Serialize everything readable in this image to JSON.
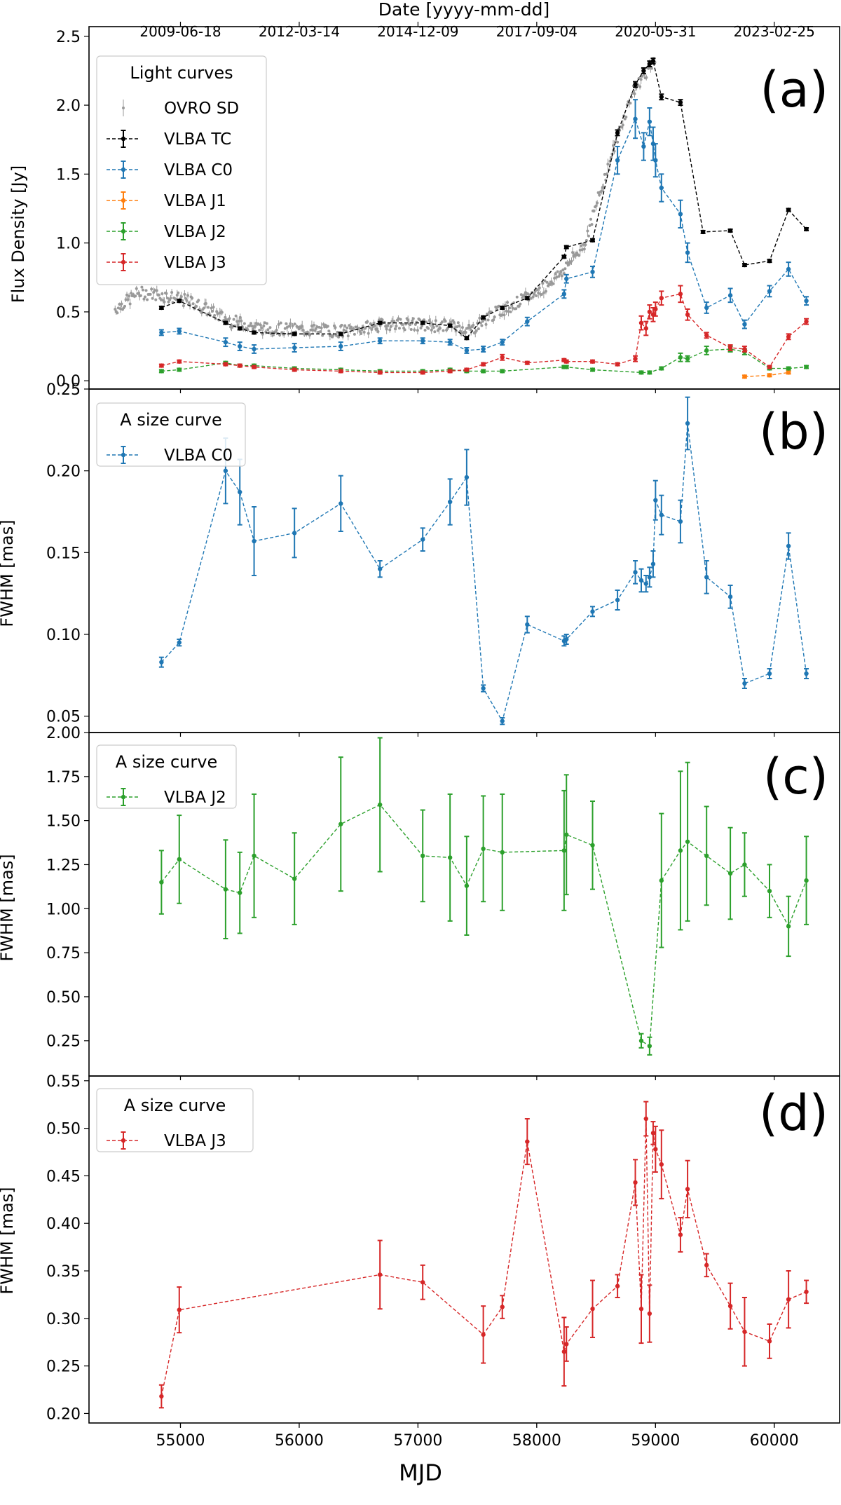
{
  "figure": {
    "top_axis_label": "Date [yyyy-mm-dd]",
    "top_ticks": [
      "2009-06-18",
      "2012-03-14",
      "2014-12-09",
      "2017-09-04",
      "2020-05-31",
      "2023-02-25"
    ],
    "top_tick_mjd": [
      55000,
      56000,
      57000,
      58000,
      59000,
      60000
    ],
    "x_axis_label": "MJD",
    "x_ticks": [
      "55000",
      "56000",
      "57000",
      "58000",
      "59000",
      "60000"
    ],
    "xlim": [
      54230,
      60550
    ]
  },
  "colors": {
    "ovro": "#999999",
    "tc": "#000000",
    "c0": "#1f77b4",
    "j1": "#ff7f0e",
    "j2": "#2ca02c",
    "j3": "#d62728"
  },
  "chart_data": [
    {
      "type": "line",
      "panel_label": "(a)",
      "ylabel": "Flux Density [Jy]",
      "ylim": [
        -0.06,
        2.57
      ],
      "yticks": [
        "0.0",
        "0.5",
        "1.0",
        "1.5",
        "2.0",
        "2.5"
      ],
      "legend_title": "Light curves",
      "series": [
        {
          "name": "VLBA TC",
          "color_key": "tc",
          "x": [
            54840,
            54990,
            55380,
            55500,
            55620,
            55960,
            56350,
            56680,
            57040,
            57270,
            57410,
            57550,
            57710,
            57920,
            58230,
            58250,
            58470,
            58680,
            58830,
            58900,
            58950,
            58980,
            59050,
            59210,
            59400,
            59630,
            59750,
            59960,
            60120,
            60270
          ],
          "y": [
            0.53,
            0.58,
            0.42,
            0.38,
            0.35,
            0.34,
            0.34,
            0.42,
            0.42,
            0.4,
            0.31,
            0.46,
            0.53,
            0.6,
            0.9,
            0.97,
            1.02,
            1.8,
            2.15,
            2.25,
            2.3,
            2.32,
            2.06,
            2.02,
            1.08,
            1.09,
            0.84,
            0.87,
            1.24,
            1.1
          ],
          "err": [
            0.01,
            0.01,
            0.01,
            0.01,
            0.01,
            0.01,
            0.01,
            0.01,
            0.01,
            0.01,
            0.01,
            0.01,
            0.01,
            0.01,
            0.01,
            0.01,
            0.01,
            0.02,
            0.02,
            0.02,
            0.02,
            0.02,
            0.02,
            0.02,
            0.01,
            0.01,
            0.01,
            0.01,
            0.01,
            0.01
          ]
        },
        {
          "name": "VLBA C0",
          "color_key": "c0",
          "x": [
            54840,
            54990,
            55380,
            55500,
            55620,
            55960,
            56350,
            56680,
            57040,
            57270,
            57410,
            57550,
            57710,
            57920,
            58230,
            58250,
            58470,
            58680,
            58830,
            58900,
            58950,
            58980,
            59000,
            59050,
            59210,
            59270,
            59430,
            59630,
            59750,
            59960,
            60120,
            60270
          ],
          "y": [
            0.35,
            0.36,
            0.28,
            0.25,
            0.23,
            0.24,
            0.25,
            0.29,
            0.29,
            0.28,
            0.22,
            0.23,
            0.28,
            0.43,
            0.63,
            0.74,
            0.79,
            1.6,
            1.9,
            1.7,
            1.88,
            1.72,
            1.6,
            1.4,
            1.21,
            0.93,
            0.53,
            0.62,
            0.41,
            0.65,
            0.81,
            0.58
          ],
          "err": [
            0.02,
            0.02,
            0.03,
            0.03,
            0.03,
            0.03,
            0.03,
            0.02,
            0.02,
            0.02,
            0.02,
            0.02,
            0.02,
            0.03,
            0.03,
            0.03,
            0.04,
            0.1,
            0.14,
            0.1,
            0.1,
            0.12,
            0.12,
            0.1,
            0.1,
            0.07,
            0.04,
            0.05,
            0.03,
            0.04,
            0.05,
            0.03
          ]
        },
        {
          "name": "VLBA J1",
          "color_key": "j1",
          "x": [
            59750,
            59960,
            60120
          ],
          "y": [
            0.03,
            0.04,
            0.06
          ],
          "err": [
            0.01,
            0.01,
            0.01
          ]
        },
        {
          "name": "VLBA J2",
          "color_key": "j2",
          "x": [
            54840,
            54990,
            55380,
            55500,
            55620,
            55960,
            56350,
            56680,
            57040,
            57270,
            57410,
            57550,
            57710,
            58230,
            58250,
            58470,
            58880,
            58950,
            59050,
            59210,
            59270,
            59430,
            59630,
            59750,
            59960,
            60120,
            60270
          ],
          "y": [
            0.07,
            0.08,
            0.13,
            0.11,
            0.11,
            0.09,
            0.08,
            0.07,
            0.07,
            0.08,
            0.07,
            0.07,
            0.07,
            0.1,
            0.1,
            0.08,
            0.06,
            0.06,
            0.09,
            0.17,
            0.16,
            0.22,
            0.23,
            0.21,
            0.09,
            0.09,
            0.1
          ],
          "err": [
            0.01,
            0.01,
            0.01,
            0.01,
            0.01,
            0.01,
            0.01,
            0.01,
            0.01,
            0.01,
            0.01,
            0.01,
            0.01,
            0.01,
            0.01,
            0.01,
            0.01,
            0.01,
            0.01,
            0.03,
            0.02,
            0.03,
            0.02,
            0.02,
            0.01,
            0.01,
            0.01
          ]
        },
        {
          "name": "VLBA J3",
          "color_key": "j3",
          "x": [
            54840,
            54990,
            55380,
            55500,
            55620,
            55960,
            56350,
            56680,
            57040,
            57270,
            57410,
            57550,
            57710,
            57920,
            58230,
            58250,
            58470,
            58680,
            58830,
            58880,
            58920,
            58950,
            58980,
            59000,
            59050,
            59210,
            59270,
            59430,
            59630,
            59750,
            59960,
            60120,
            60270
          ],
          "y": [
            0.11,
            0.14,
            0.12,
            0.11,
            0.1,
            0.08,
            0.07,
            0.06,
            0.06,
            0.07,
            0.08,
            0.12,
            0.17,
            0.13,
            0.15,
            0.14,
            0.14,
            0.12,
            0.16,
            0.42,
            0.38,
            0.5,
            0.48,
            0.52,
            0.6,
            0.63,
            0.48,
            0.33,
            0.24,
            0.23,
            0.1,
            0.32,
            0.43
          ],
          "err": [
            0.01,
            0.01,
            0.01,
            0.01,
            0.01,
            0.01,
            0.01,
            0.01,
            0.01,
            0.01,
            0.01,
            0.01,
            0.02,
            0.01,
            0.01,
            0.01,
            0.01,
            0.01,
            0.02,
            0.05,
            0.05,
            0.05,
            0.05,
            0.05,
            0.05,
            0.06,
            0.04,
            0.02,
            0.02,
            0.02,
            0.01,
            0.02,
            0.02
          ]
        }
      ],
      "scatter_series": {
        "name": "OVRO SD",
        "color_key": "ovro"
      }
    },
    {
      "type": "line",
      "panel_label": "(b)",
      "ylabel": "FWHM [mas]",
      "ylim": [
        0.04,
        0.25
      ],
      "yticks": [
        "0.05",
        "0.10",
        "0.15",
        "0.20",
        "0.25"
      ],
      "legend_title": "A size curve",
      "series": [
        {
          "name": "VLBA C0",
          "color_key": "c0",
          "x": [
            54840,
            54990,
            55380,
            55500,
            55620,
            55960,
            56350,
            56680,
            57040,
            57270,
            57410,
            57550,
            57710,
            57920,
            58230,
            58250,
            58470,
            58680,
            58830,
            58880,
            58920,
            58950,
            58980,
            59000,
            59050,
            59210,
            59270,
            59430,
            59630,
            59750,
            59960,
            60120,
            60270
          ],
          "y": [
            0.083,
            0.095,
            0.2,
            0.187,
            0.157,
            0.162,
            0.18,
            0.14,
            0.158,
            0.181,
            0.196,
            0.067,
            0.047,
            0.106,
            0.096,
            0.097,
            0.114,
            0.121,
            0.138,
            0.133,
            0.131,
            0.135,
            0.143,
            0.182,
            0.173,
            0.169,
            0.229,
            0.135,
            0.123,
            0.07,
            0.076,
            0.154,
            0.076
          ],
          "err": [
            0.003,
            0.002,
            0.02,
            0.02,
            0.021,
            0.015,
            0.017,
            0.005,
            0.007,
            0.014,
            0.017,
            0.002,
            0.002,
            0.005,
            0.003,
            0.003,
            0.003,
            0.006,
            0.007,
            0.007,
            0.005,
            0.006,
            0.008,
            0.012,
            0.012,
            0.013,
            0.016,
            0.01,
            0.007,
            0.003,
            0.003,
            0.008,
            0.003
          ]
        }
      ]
    },
    {
      "type": "line",
      "panel_label": "(c)",
      "ylabel": "FWHM [mas]",
      "ylim": [
        0.05,
        2.0
      ],
      "yticks": [
        "0.25",
        "0.50",
        "0.75",
        "1.00",
        "1.25",
        "1.50",
        "1.75",
        "2.00"
      ],
      "legend_title": "A size curve",
      "series": [
        {
          "name": "VLBA J2",
          "color_key": "j2",
          "x": [
            54840,
            54990,
            55380,
            55500,
            55620,
            55960,
            56350,
            56680,
            57040,
            57270,
            57410,
            57550,
            57710,
            58230,
            58250,
            58470,
            58880,
            58950,
            59050,
            59210,
            59270,
            59430,
            59630,
            59750,
            59960,
            60120,
            60270
          ],
          "y": [
            1.15,
            1.28,
            1.11,
            1.09,
            1.3,
            1.17,
            1.48,
            1.59,
            1.3,
            1.29,
            1.13,
            1.34,
            1.32,
            1.33,
            1.42,
            1.36,
            0.25,
            0.22,
            1.16,
            1.33,
            1.38,
            1.3,
            1.2,
            1.25,
            1.1,
            0.9,
            1.16
          ],
          "err": [
            0.18,
            0.25,
            0.28,
            0.23,
            0.35,
            0.26,
            0.38,
            0.38,
            0.26,
            0.36,
            0.28,
            0.3,
            0.33,
            0.34,
            0.34,
            0.25,
            0.04,
            0.05,
            0.38,
            0.45,
            0.45,
            0.28,
            0.26,
            0.18,
            0.15,
            0.17,
            0.25
          ]
        }
      ]
    },
    {
      "type": "line",
      "panel_label": "(d)",
      "ylabel": "FWHM [mas]",
      "ylim": [
        0.19,
        0.555
      ],
      "yticks": [
        "0.20",
        "0.25",
        "0.30",
        "0.35",
        "0.40",
        "0.45",
        "0.50",
        "0.55"
      ],
      "legend_title": "A size curve",
      "series": [
        {
          "name": "VLBA J3",
          "color_key": "j3",
          "x": [
            54840,
            54990,
            56680,
            57040,
            57550,
            57710,
            57920,
            58230,
            58250,
            58470,
            58680,
            58830,
            58880,
            58920,
            58950,
            58980,
            59000,
            59050,
            59210,
            59270,
            59430,
            59630,
            59750,
            59960,
            60120,
            60270
          ],
          "y": [
            0.218,
            0.309,
            0.346,
            0.338,
            0.283,
            0.312,
            0.486,
            0.265,
            0.273,
            0.31,
            0.334,
            0.443,
            0.31,
            0.51,
            0.305,
            0.495,
            0.478,
            0.462,
            0.388,
            0.436,
            0.356,
            0.313,
            0.286,
            0.276,
            0.32,
            0.328
          ]
        }
      ]
    }
  ]
}
